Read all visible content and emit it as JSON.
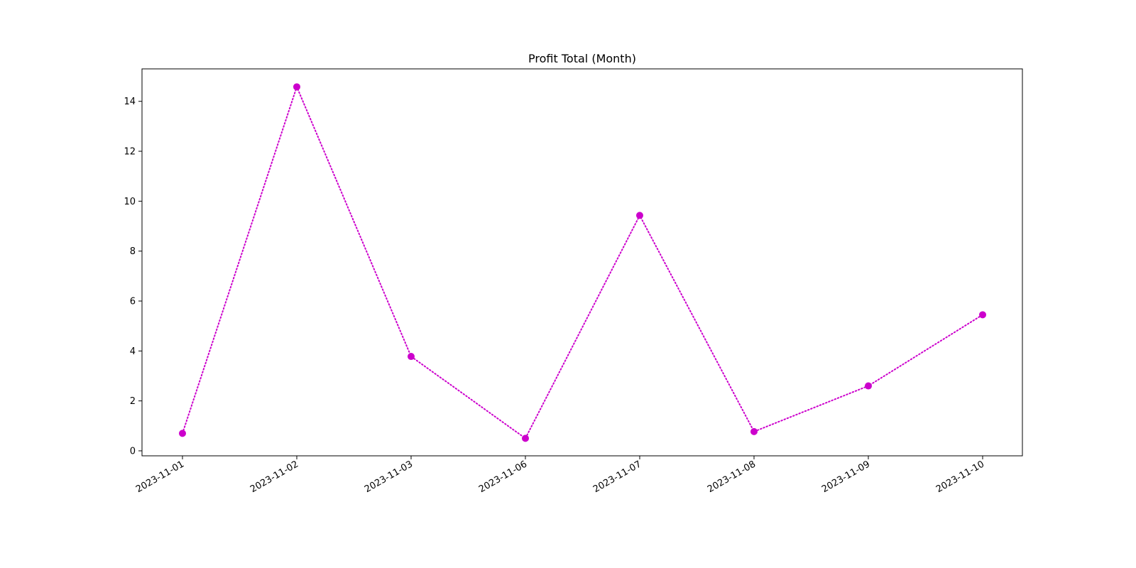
{
  "chart_data": {
    "type": "line",
    "title": "Profit Total (Month)",
    "xlabel": "",
    "ylabel": "",
    "categories": [
      "2023-11-01",
      "2023-11-02",
      "2023-11-03",
      "2023-11-06",
      "2023-11-07",
      "2023-11-08",
      "2023-11-09",
      "2023-11-10"
    ],
    "series": [
      {
        "values": [
          0.7,
          14.58,
          3.78,
          0.5,
          9.43,
          0.77,
          2.6,
          5.45
        ],
        "color": "#cc00cc",
        "line_style": "dotted",
        "marker": "circle"
      }
    ],
    "ylim": [
      -0.2,
      15.3
    ],
    "yticks": [
      0,
      2,
      4,
      6,
      8,
      10,
      12,
      14
    ],
    "grid": false,
    "legend": "none"
  }
}
